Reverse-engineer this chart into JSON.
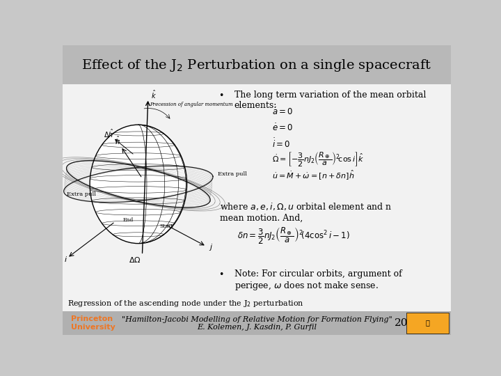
{
  "title": "Effect of the J$_2$ Perturbation on a single spacecraft",
  "bg_color": "#c8c8c8",
  "title_bar_color": "#b8b8b8",
  "content_bg": "#f2f2f2",
  "footer_bar_color": "#b0b0b0",
  "title_fontsize": 14,
  "body_fontsize": 9,
  "bullet1_header": "The long term variation of the mean orbital\nelements:",
  "eq1": "$\\dot{a} = 0$",
  "eq2": "$\\dot{e} = 0$",
  "eq3": "$\\dot{i} = 0$",
  "eq4": "$\\dot{\\Omega} = \\left[-\\dfrac{3}{2}nJ_2\\left(\\dfrac{R_\\oplus}{a}\\right)^2\\!\\cos i\\right]\\hat{k}$",
  "eq5": "$\\dot{u} = \\dot{M} + \\dot{\\omega} = [n + \\delta n]\\hat{h}$",
  "where_text": "where $a, e, i, \\Omega, u$ orbital element and n\nmean motion. And,",
  "eq6": "$\\delta n = \\dfrac{3}{2}nJ_2\\left(\\dfrac{R_\\oplus}{a}\\right)^2\\!(4\\cos^2 i - 1)$",
  "caption": "Regression of the ascending node under the J$_2$ perturbation",
  "bullet2_text": "Note: For circular orbits, argument of\nperigee, $\\omega$ does not make sense.",
  "page_num": "20",
  "princeton_color": "#ee7624",
  "footer_fontsize": 8,
  "caption_fontsize": 8
}
